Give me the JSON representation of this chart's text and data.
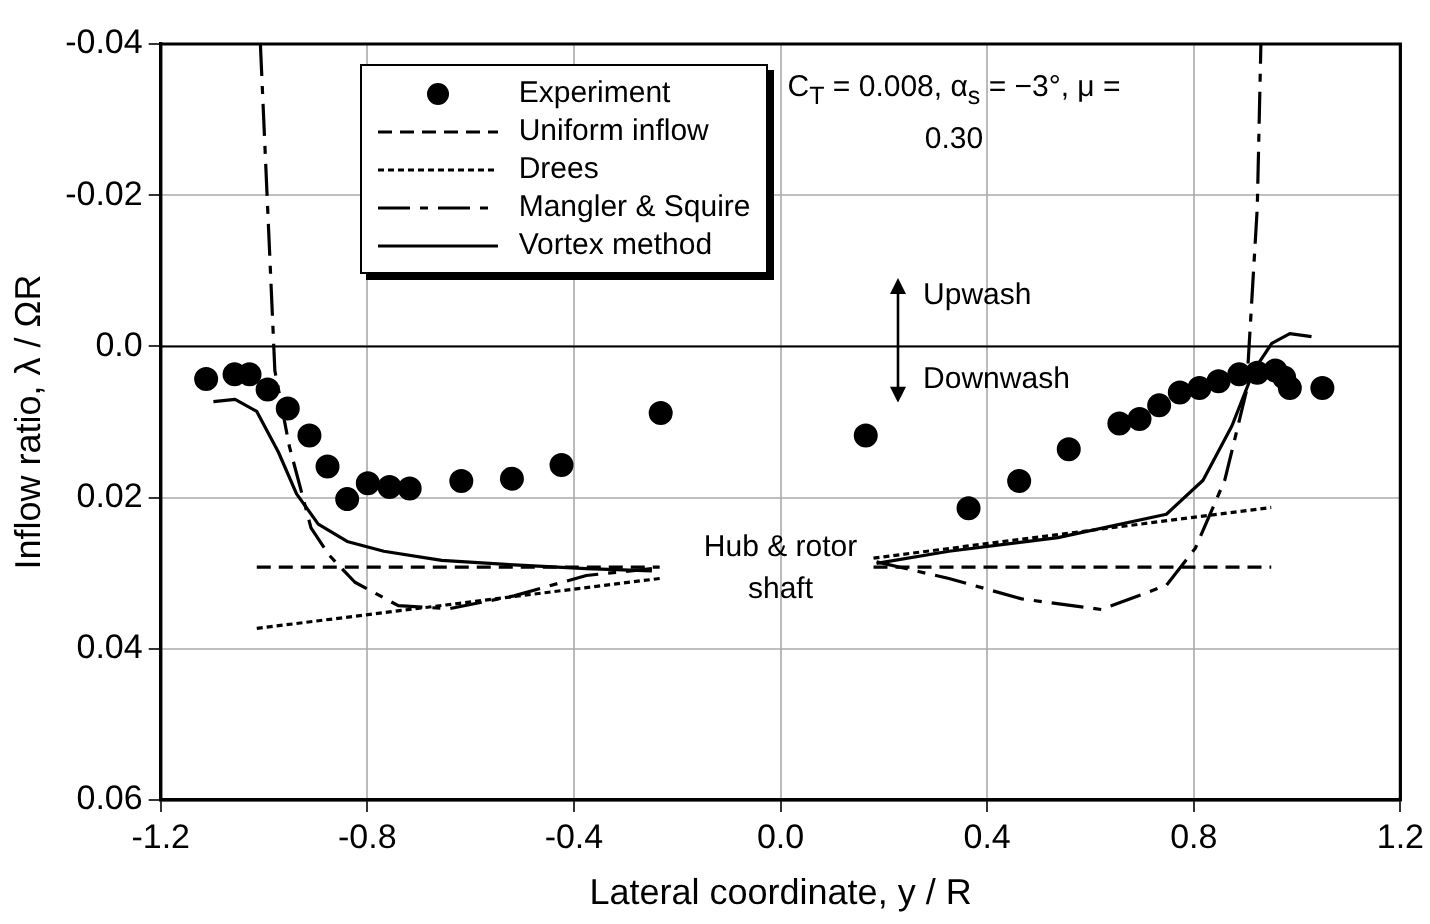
{
  "chart_data": {
    "type": "line",
    "xlabel": "Lateral coordinate, y / R",
    "ylabel": "Inflow ratio, λ / ΩR",
    "xlim": [
      -1.2,
      1.2
    ],
    "xticks": [
      -1.2,
      -0.8,
      -0.4,
      {
        "value": 0,
        "label": "0.0"
      },
      0.4,
      0.8,
      1.2
    ],
    "ylim": [
      0.06,
      -0.04
    ],
    "yticks": [
      -0.04,
      -0.02,
      {
        "value": 0,
        "label": "0.0"
      },
      0.02,
      0.04,
      0.06
    ],
    "grid": true,
    "legend": "top left",
    "ref_lines": [
      {
        "axis": "y",
        "value": 0,
        "color": "#000000",
        "line_style": "solid"
      }
    ],
    "annotations": [
      "C$_{T}$ = 0.008, α$_{s}$ = −3°, μ = 0.30",
      "Upwash",
      "Downwash",
      "Hub & rotor shaft"
    ],
    "series": [
      {
        "name": "Experiment",
        "type": "scatter",
        "color": "#000000",
        "marker": "circle",
        "x": [
          -1.112,
          -1.057,
          -1.028,
          -0.993,
          -0.954,
          -0.912,
          -0.877,
          -0.839,
          -0.799,
          -0.757,
          -0.718,
          -0.618,
          -0.52,
          -0.424,
          -0.232,
          0.165,
          0.364,
          0.462,
          0.558,
          0.656,
          0.695,
          0.733,
          0.773,
          0.811,
          0.848,
          0.888,
          0.923,
          0.958,
          0.975,
          0.986,
          1.049
        ],
        "values": [
          0.0043,
          0.0037,
          0.0037,
          0.0057,
          0.0082,
          0.0118,
          0.0159,
          0.0202,
          0.0181,
          0.0186,
          0.0188,
          0.0178,
          0.0175,
          0.0157,
          0.0088,
          0.0118,
          0.0214,
          0.0178,
          0.0136,
          0.0102,
          0.0096,
          0.0078,
          0.0061,
          0.0055,
          0.0046,
          0.0037,
          0.0035,
          0.0032,
          0.0041,
          0.0055,
          0.0055
        ]
      },
      {
        "name": "Uniform inflow",
        "type": "line",
        "color": "#000000",
        "line_style": "dashed",
        "marker": "none",
        "x": [
          -1.014,
          -0.234,
          0,
          0.18,
          0.95
        ],
        "values": [
          0.0292,
          0.0292,
          null,
          0.0292,
          0.0292
        ]
      },
      {
        "name": "Drees",
        "type": "line",
        "color": "#000000",
        "line_style": "dotted",
        "marker": "none",
        "x": [
          -1.014,
          -0.234,
          0,
          0.18,
          0.95
        ],
        "values": [
          0.0373,
          0.0307,
          null,
          0.028,
          0.0213
        ]
      },
      {
        "name": "Mangler & Squire",
        "type": "line",
        "color": "#000000",
        "line_style": "dashdot",
        "marker": "none",
        "x": [
          -1.007,
          -0.979,
          -0.951,
          -0.909,
          -0.874,
          -0.824,
          -0.74,
          -0.642,
          -0.516,
          -0.376,
          -0.249,
          0,
          0.186,
          0.326,
          0.467,
          0.621,
          0.747,
          0.803,
          0.86,
          0.902,
          0.923,
          0.93
        ],
        "values": [
          -0.04,
          0.0032,
          0.0132,
          0.024,
          0.0276,
          0.0312,
          0.0343,
          0.0347,
          0.033,
          0.0303,
          0.0294,
          null,
          0.0285,
          0.0307,
          0.0334,
          0.0348,
          0.0316,
          0.0267,
          0.0177,
          0.0059,
          -0.0184,
          -0.04
        ]
      },
      {
        "name": "Vortex method",
        "type": "line",
        "color": "#000000",
        "line_style": "solid",
        "marker": "none",
        "x": [
          -1.098,
          -1.056,
          -1.014,
          -0.972,
          -0.937,
          -0.895,
          -0.839,
          -0.768,
          -0.656,
          -0.516,
          -0.376,
          -0.249,
          0,
          0.186,
          0.326,
          0.537,
          0.747,
          0.818,
          0.874,
          0.916,
          0.951,
          0.986,
          1.028
        ],
        "values": [
          0.0073,
          0.007,
          0.0086,
          0.014,
          0.0195,
          0.0235,
          0.0258,
          0.0271,
          0.0283,
          0.0289,
          0.0294,
          0.0297,
          null,
          0.0287,
          0.0271,
          0.0253,
          0.0222,
          0.0177,
          0.0105,
          0.0032,
          -0.0004,
          -0.0017,
          -0.0013
        ]
      }
    ]
  }
}
